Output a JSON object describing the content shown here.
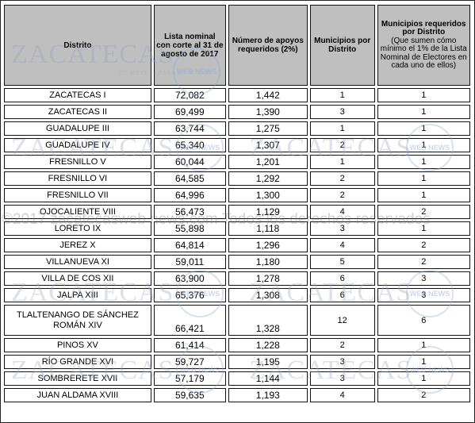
{
  "headers": {
    "distrito": "Distrito",
    "lista_nominal": "Lista nominal con corte al 31 de agosto de 2017",
    "numero_apoyos": "Número de apoyos requeridos (2%)",
    "municipios_distrito": "Municipios por Distrito",
    "municipios_requeridos_title": "Municipios requeridos por Distrito",
    "municipios_requeridos_note": "(Que sumen cómo mínimo el 1% de la Lista Nominal de Electores en cada uno de ellos)"
  },
  "rows": [
    {
      "distrito": "ZACATECAS I",
      "lista": "72,082",
      "apoyos": "1,442",
      "municipios": "1",
      "requeridos": "1"
    },
    {
      "distrito": "ZACATECAS II",
      "lista": "69,499",
      "apoyos": "1,390",
      "municipios": "3",
      "requeridos": "1"
    },
    {
      "distrito": "GUADALUPE III",
      "lista": "63,744",
      "apoyos": "1,275",
      "municipios": "1",
      "requeridos": "1"
    },
    {
      "distrito": "GUADALUPE IV",
      "lista": "65,340",
      "apoyos": "1,307",
      "municipios": "2",
      "requeridos": "1"
    },
    {
      "distrito": "FRESNILLO V",
      "lista": "60,044",
      "apoyos": "1,201",
      "municipios": "1",
      "requeridos": "1"
    },
    {
      "distrito": "FRESNILLO VI",
      "lista": "64,585",
      "apoyos": "1,292",
      "municipios": "2",
      "requeridos": "1"
    },
    {
      "distrito": "FRESNILLO VII",
      "lista": "64,996",
      "apoyos": "1,300",
      "municipios": "2",
      "requeridos": "1"
    },
    {
      "distrito": "OJOCALIENTE VIII",
      "lista": "56,473",
      "apoyos": "1,129",
      "municipios": "4",
      "requeridos": "2"
    },
    {
      "distrito": "LORETO IX",
      "lista": "55,898",
      "apoyos": "1,118",
      "municipios": "3",
      "requeridos": "1"
    },
    {
      "distrito": "JEREZ X",
      "lista": "64,814",
      "apoyos": "1,296",
      "municipios": "4",
      "requeridos": "2"
    },
    {
      "distrito": "VILLANUEVA XI",
      "lista": "59,011",
      "apoyos": "1,180",
      "municipios": "5",
      "requeridos": "2"
    },
    {
      "distrito": "VILLA DE COS XII",
      "lista": "63,900",
      "apoyos": "1,278",
      "municipios": "6",
      "requeridos": "3"
    },
    {
      "distrito": "JALPA XIII",
      "lista": "65,376",
      "apoyos": "1,308",
      "municipios": "6",
      "requeridos": "3"
    },
    {
      "distrito": "TLALTENANGO DE SÁNCHEZ ROMÁN  XIV",
      "lista": "66,421",
      "apoyos": "1,328",
      "municipios": "12",
      "requeridos": "6"
    },
    {
      "distrito": "PINOS XV",
      "lista": "61,414",
      "apoyos": "1,228",
      "municipios": "2",
      "requeridos": "1"
    },
    {
      "distrito": "RÍO GRANDE XVI",
      "lista": "59,727",
      "apoyos": "1,195",
      "municipios": "3",
      "requeridos": "1"
    },
    {
      "distrito": "SOMBRERETE XVII",
      "lista": "57,179",
      "apoyos": "1,144",
      "municipios": "3",
      "requeridos": "1"
    },
    {
      "distrito": "JUAN ALDAMA XVIII",
      "lista": "59,635",
      "apoyos": "1,193",
      "municipios": "4",
      "requeridos": "2"
    }
  ],
  "watermark": {
    "logo": "ZACATECAS",
    "logo_tagline": "DE MÉXICO PARA EL MUNDO",
    "badge": "WEB NEWS",
    "copyright_line": "©2017 zacatecasweb news.com Todos los derechos reservados"
  }
}
